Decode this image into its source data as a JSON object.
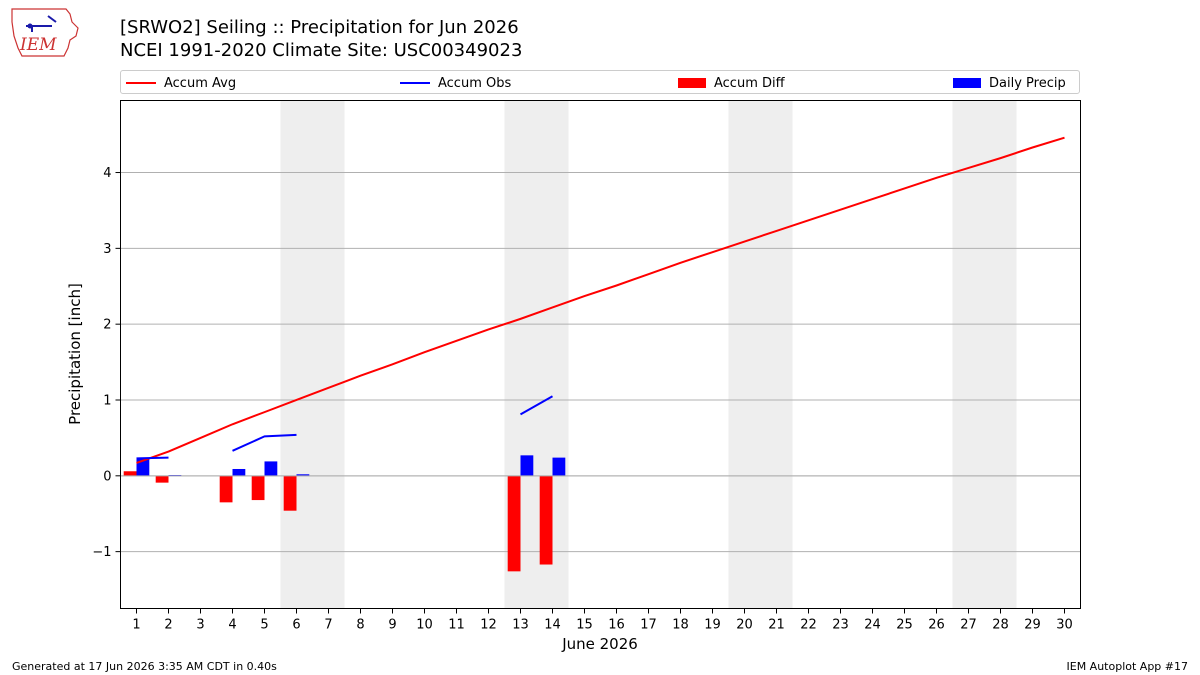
{
  "header": {
    "title_line1": "[SRWO2] Seiling :: Precipitation for Jun 2026",
    "title_line2": "NCEI 1991-2020 Climate Site: USC00349023"
  },
  "logo": {
    "text": "IEM",
    "icon": "iowa-state-outline-icon"
  },
  "footer": {
    "generated": "Generated at 17 Jun 2026 3:35 AM CDT in 0.40s",
    "app": "IEM Autoplot App #17"
  },
  "colors": {
    "avg": "#ff0000",
    "obs": "#0000ff",
    "diff": "#ff0000",
    "daily": "#0000ff",
    "weekend": "#eeeeee",
    "grid": "#b0b0b0"
  },
  "chart_data": {
    "type": "bar",
    "xlabel": "June 2026",
    "ylabel": "Precipitation [inch]",
    "xlim": [
      0.5,
      30.5
    ],
    "ylim": [
      -1.75,
      4.95
    ],
    "yticks": [
      -1,
      0,
      1,
      2,
      3,
      4
    ],
    "ytick_labels": [
      "−1",
      "0",
      "1",
      "2",
      "3",
      "4"
    ],
    "xticks": [
      1,
      2,
      3,
      4,
      5,
      6,
      7,
      8,
      9,
      10,
      11,
      12,
      13,
      14,
      15,
      16,
      17,
      18,
      19,
      20,
      21,
      22,
      23,
      24,
      25,
      26,
      27,
      28,
      29,
      30
    ],
    "grid": "horizontal",
    "legend_location": "top",
    "weekend_shading": [
      [
        6,
        7
      ],
      [
        13,
        14
      ],
      [
        20,
        21
      ],
      [
        27,
        28
      ]
    ],
    "series": [
      {
        "name": "Accum Avg",
        "type": "line",
        "x": [
          1,
          2,
          3,
          4,
          5,
          6,
          7,
          8,
          9,
          10,
          11,
          12,
          13,
          14,
          15,
          16,
          17,
          18,
          19,
          20,
          21,
          22,
          23,
          24,
          25,
          26,
          27,
          28,
          29,
          30
        ],
        "values": [
          0.17,
          0.32,
          0.5,
          0.68,
          0.84,
          1.0,
          1.16,
          1.32,
          1.47,
          1.63,
          1.78,
          1.93,
          2.07,
          2.22,
          2.37,
          2.51,
          2.66,
          2.81,
          2.95,
          3.09,
          3.23,
          3.37,
          3.51,
          3.65,
          3.79,
          3.93,
          4.06,
          4.19,
          4.33,
          4.46
        ]
      },
      {
        "name": "Accum Obs",
        "type": "line",
        "segments": [
          {
            "x": [
              1,
              2
            ],
            "values": [
              0.23,
              0.24
            ]
          },
          {
            "x": [
              4,
              5,
              6
            ],
            "values": [
              0.33,
              0.52,
              0.54
            ]
          },
          {
            "x": [
              13,
              14
            ],
            "values": [
              0.81,
              1.05
            ]
          }
        ]
      },
      {
        "name": "Accum Diff",
        "type": "bar",
        "x": [
          1,
          2,
          4,
          5,
          6,
          13,
          14
        ],
        "values": [
          0.06,
          -0.09,
          -0.35,
          -0.32,
          -0.46,
          -1.26,
          -1.17
        ]
      },
      {
        "name": "Daily Precip",
        "type": "bar",
        "x": [
          1,
          2,
          4,
          5,
          6,
          13,
          14
        ],
        "values": [
          0.23,
          0.01,
          0.09,
          0.19,
          0.02,
          0.27,
          0.24
        ]
      }
    ]
  }
}
